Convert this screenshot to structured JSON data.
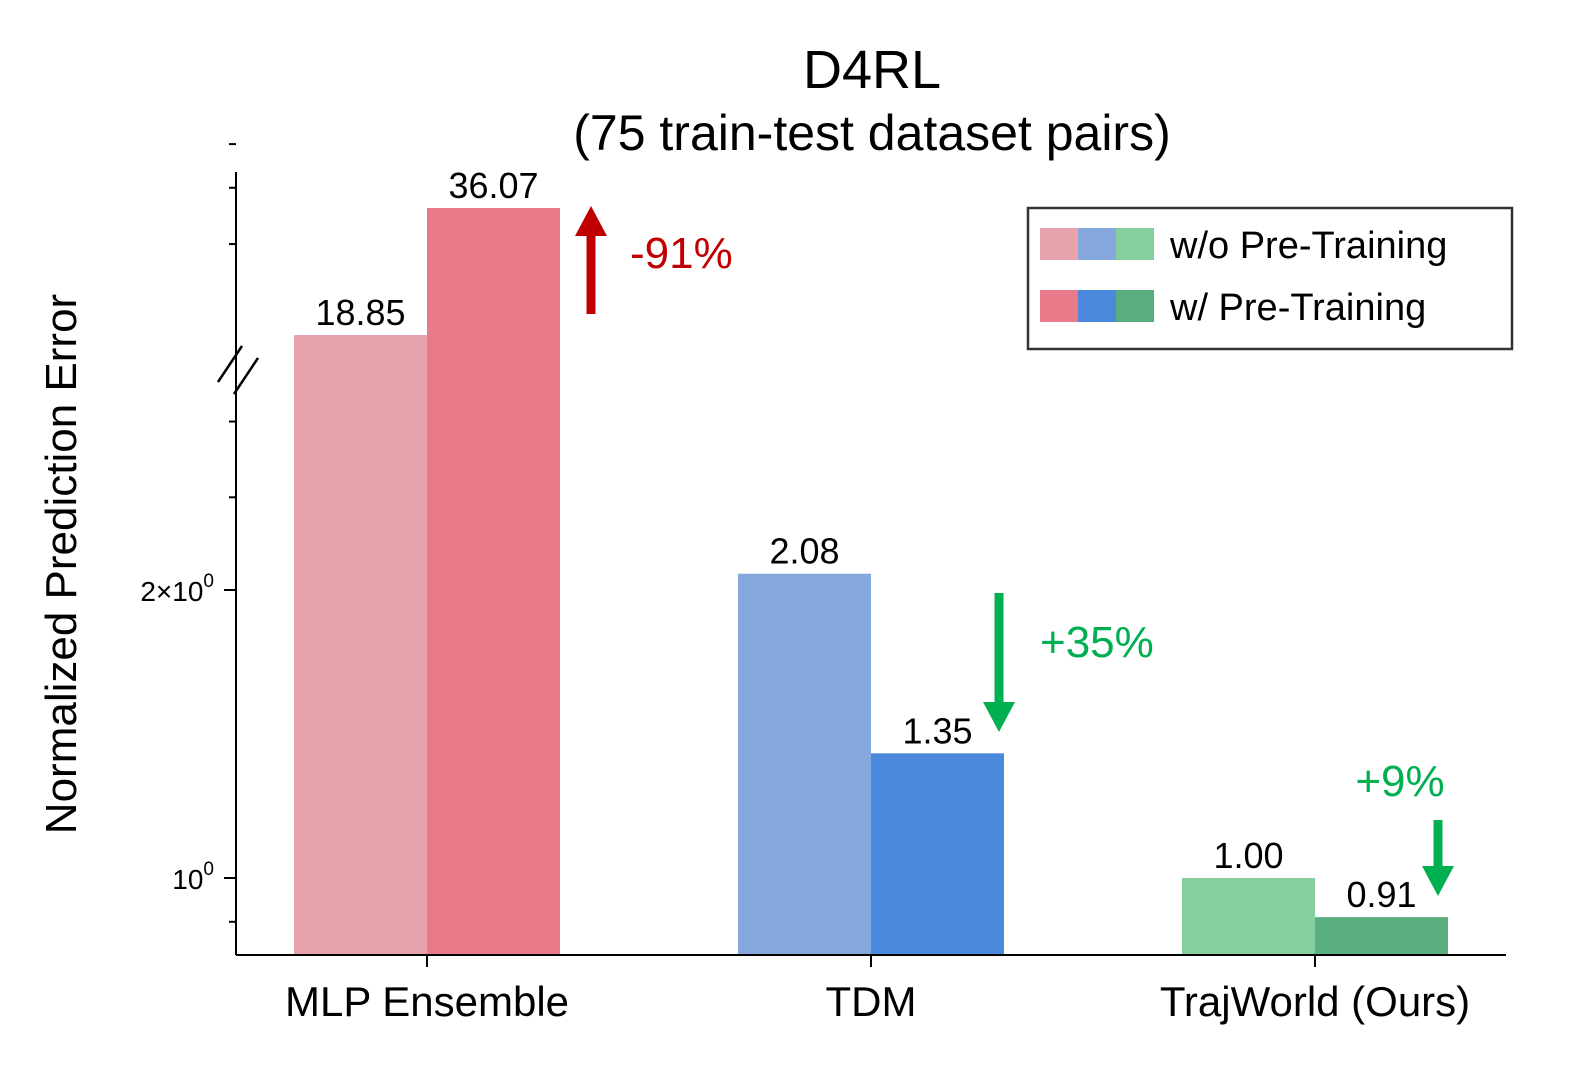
{
  "chart_data": {
    "type": "bar",
    "title": "D4RL",
    "subtitle": "(75 train-test dataset pairs)",
    "ylabel": "Normalized Prediction Error",
    "xlabel": "",
    "yscale": "log",
    "y_axis_break": true,
    "categories": [
      "MLP Ensemble",
      "TDM",
      "TrajWorld (Ours)"
    ],
    "series": [
      {
        "name": "w/o Pre-Training",
        "values": [
          18.85,
          2.08,
          1.0
        ],
        "value_labels": [
          "18.85",
          "2.08",
          "1.00"
        ]
      },
      {
        "name": "w/ Pre-Training",
        "values": [
          36.07,
          1.35,
          0.91
        ],
        "value_labels": [
          "36.07",
          "1.35",
          "0.91"
        ]
      }
    ],
    "bar_colors": [
      {
        "without": "#e8a2ac",
        "with": "#e87a8a"
      },
      {
        "without": "#84a8db",
        "with": "#4a89dc"
      },
      {
        "without": "#85cf9f",
        "with": "#5aae7e"
      }
    ],
    "ytick_labels": [
      {
        "value": 2,
        "base": "2×10",
        "exp": "0"
      },
      {
        "value": 1,
        "base": "10",
        "exp": "0"
      }
    ],
    "annotations": [
      {
        "category": "MLP Ensemble",
        "text": "-91%",
        "direction": "up",
        "color": "#c00000"
      },
      {
        "category": "TDM",
        "text": "+35%",
        "direction": "down",
        "color": "#00b050"
      },
      {
        "category": "TrajWorld (Ours)",
        "text": "+9%",
        "direction": "down",
        "color": "#00b050"
      }
    ],
    "legend": {
      "position": "top-right",
      "entries": [
        "w/o Pre-Training",
        "w/ Pre-Training"
      ]
    },
    "grid": false
  }
}
